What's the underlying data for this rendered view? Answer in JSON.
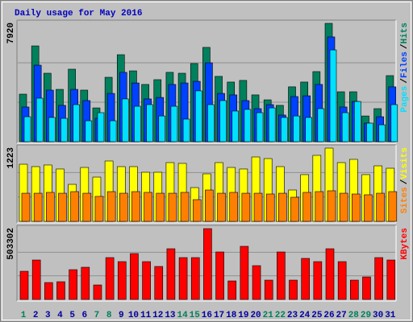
{
  "legend_separator": "/",
  "chart_data": [
    {
      "type": "bar",
      "title": "Daily usage for May 2016",
      "ylim": [
        0,
        7920
      ],
      "yticks": [
        7920
      ],
      "series": [
        {
          "name": "Hits",
          "color": "#00805c",
          "values": [
            3180,
            6410,
            4580,
            3500,
            4850,
            3450,
            2260,
            4310,
            5820,
            4740,
            3830,
            4150,
            4640,
            4580,
            5230,
            6310,
            4370,
            3990,
            4100,
            3130,
            2800,
            2430,
            3670,
            3990,
            4690,
            7920,
            3340,
            3340,
            1720,
            2210,
            4420
          ]
        },
        {
          "name": "Files",
          "color": "#0040ff",
          "values": [
            2320,
            5120,
            3450,
            2430,
            3500,
            2750,
            1560,
            3230,
            4640,
            3930,
            2860,
            2960,
            3830,
            3930,
            4040,
            5280,
            3230,
            3130,
            2750,
            2210,
            2480,
            1780,
            3020,
            3070,
            3830,
            7010,
            2320,
            2690,
            1240,
            1670,
            3670
          ]
        },
        {
          "name": "Pages",
          "color": "#00e0ff",
          "values": [
            1670,
            2910,
            1620,
            1560,
            2480,
            1400,
            1940,
            1400,
            2860,
            2370,
            2480,
            1720,
            2370,
            1510,
            3400,
            2480,
            2750,
            2050,
            2160,
            1940,
            2260,
            1620,
            1720,
            1620,
            2210,
            6140,
            1940,
            2690,
            1240,
            1130,
            2480
          ]
        }
      ]
    },
    {
      "type": "bar",
      "ylim": [
        0,
        1223
      ],
      "yticks": [
        1223
      ],
      "series": [
        {
          "name": "Visits",
          "color": "#ffff00",
          "values": [
            954,
            914,
            941,
            874,
            618,
            900,
            739,
            1008,
            914,
            914,
            820,
            820,
            981,
            968,
            564,
            793,
            981,
            900,
            874,
            1075,
            1048,
            914,
            524,
            780,
            1102,
            1223,
            981,
            1035,
            780,
            927,
            887
          ]
        },
        {
          "name": "Sites",
          "color": "#ff8000",
          "values": [
            470,
            470,
            484,
            470,
            497,
            470,
            417,
            497,
            470,
            497,
            484,
            470,
            470,
            484,
            363,
            524,
            470,
            484,
            470,
            470,
            457,
            470,
            403,
            484,
            497,
            511,
            470,
            457,
            444,
            470,
            497
          ]
        }
      ]
    },
    {
      "type": "bar",
      "ylim": [
        0,
        503302
      ],
      "yticks": [
        503302
      ],
      "categories": [
        "1",
        "2",
        "3",
        "4",
        "5",
        "6",
        "7",
        "8",
        "9",
        "10",
        "11",
        "12",
        "13",
        "14",
        "15",
        "16",
        "17",
        "18",
        "19",
        "20",
        "21",
        "22",
        "23",
        "24",
        "25",
        "26",
        "27",
        "28",
        "29",
        "30",
        "31"
      ],
      "category_colors": [
        "#00805c",
        "#0000a0",
        "#0000a0",
        "#0000a0",
        "#0000a0",
        "#0000a0",
        "#00805c",
        "#00805c",
        "#0000a0",
        "#0000a0",
        "#0000a0",
        "#0000a0",
        "#0000a0",
        "#00805c",
        "#00805c",
        "#0000a0",
        "#0000a0",
        "#0000a0",
        "#0000a0",
        "#0000a0",
        "#00805c",
        "#00805c",
        "#0000a0",
        "#0000a0",
        "#0000a0",
        "#0000a0",
        "#0000a0",
        "#00805c",
        "#00805c",
        "#0000a0",
        "#0000a0"
      ],
      "series": [
        {
          "name": "KBytes",
          "color": "#ff0000",
          "values": [
            200165,
            280231,
            120099,
            125818,
            211603,
            228760,
            102942,
            297388,
            268793,
            325983,
            268793,
            234479,
            360297,
            297388,
            297388,
            503302,
            337421,
            131537,
            377454,
            240198,
            137256,
            337421,
            137256,
            291669,
            268793,
            360297,
            268793,
            137256,
            160132,
            297388,
            280231
          ]
        }
      ]
    }
  ]
}
